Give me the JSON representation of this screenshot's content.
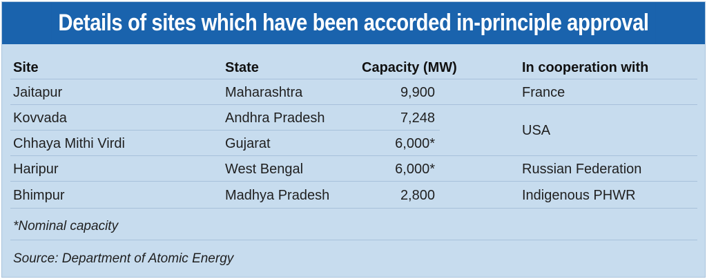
{
  "title": "Details of sites which have been accorded in-principle approval",
  "headers": {
    "site": "Site",
    "state": "State",
    "capacity": "Capacity (MW)",
    "cooperation": "In cooperation with"
  },
  "rows": [
    {
      "site": "Jaitapur",
      "state": "Maharashtra",
      "capacity": "9,900"
    },
    {
      "site": "Kovvada",
      "state": "Andhra Pradesh",
      "capacity": "7,248"
    },
    {
      "site": "Chhaya Mithi Virdi",
      "state": "Gujarat",
      "capacity": "6,000*"
    },
    {
      "site": "Haripur",
      "state": "West Bengal",
      "capacity": "6,000*"
    },
    {
      "site": "Bhimpur",
      "state": "Madhya Pradesh",
      "capacity": "2,800"
    }
  ],
  "cooperation": [
    "France",
    "USA",
    "Russian Federation",
    "Indigenous PHWR"
  ],
  "footnote": "*Nominal capacity",
  "source": "Source: Department of Atomic Energy"
}
